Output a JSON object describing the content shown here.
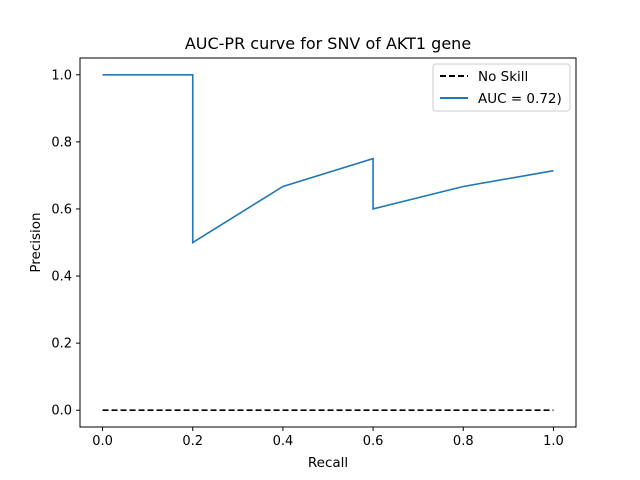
{
  "chart_data": {
    "type": "line",
    "title": "AUC-PR curve for SNV of AKT1 gene",
    "xlabel": "Recall",
    "ylabel": "Precision",
    "xlim": [
      -0.05,
      1.05
    ],
    "ylim": [
      -0.05,
      1.05
    ],
    "xticks": [
      0.0,
      0.2,
      0.4,
      0.6,
      0.8,
      1.0
    ],
    "xtick_labels": [
      "0.0",
      "0.2",
      "0.4",
      "0.6",
      "0.8",
      "1.0"
    ],
    "yticks": [
      0.0,
      0.2,
      0.4,
      0.6,
      0.8,
      1.0
    ],
    "ytick_labels": [
      "0.0",
      "0.2",
      "0.4",
      "0.6",
      "0.8",
      "1.0"
    ],
    "grid": false,
    "legend_position": "upper right",
    "series": [
      {
        "name": "No Skill",
        "color": "#000000",
        "style": "dashed",
        "x": [
          0.0,
          1.0
        ],
        "y": [
          0.0,
          0.0
        ]
      },
      {
        "name": "AUC = 0.72)",
        "color": "#1f77b4",
        "style": "solid",
        "x": [
          0.0,
          0.2,
          0.2,
          0.4,
          0.6,
          0.6,
          0.8,
          1.0
        ],
        "y": [
          1.0,
          1.0,
          0.5,
          0.667,
          0.75,
          0.6,
          0.667,
          0.714
        ]
      }
    ]
  }
}
